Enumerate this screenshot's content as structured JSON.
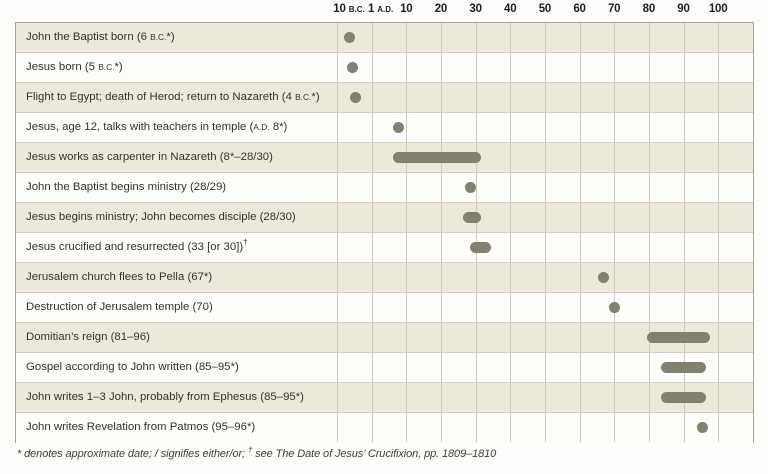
{
  "footnote": "* denotes approximate date; / signifies either/or; † see The Date of Jesus’ Crucifixion, pp. 1809–1810",
  "chart_data": {
    "type": "timeline-gantt",
    "title": "",
    "axis": {
      "unit": "years",
      "range_label": "10 B.C. to A.D. 100",
      "ticks": [
        {
          "label": "10",
          "suffix": "B.C.",
          "year": -10
        },
        {
          "label": "1",
          "suffix": "A.D.",
          "year": 1
        },
        {
          "label": "10",
          "suffix": "",
          "year": 10
        },
        {
          "label": "20",
          "suffix": "",
          "year": 20
        },
        {
          "label": "30",
          "suffix": "",
          "year": 30
        },
        {
          "label": "40",
          "suffix": "",
          "year": 40
        },
        {
          "label": "50",
          "suffix": "",
          "year": 50
        },
        {
          "label": "60",
          "suffix": "",
          "year": 60
        },
        {
          "label": "70",
          "suffix": "",
          "year": 70
        },
        {
          "label": "80",
          "suffix": "",
          "year": 80
        },
        {
          "label": "90",
          "suffix": "",
          "year": 90
        },
        {
          "label": "100",
          "suffix": "",
          "year": 100
        }
      ]
    },
    "rows": [
      {
        "label": "John the Baptist born (6 B.C.*)",
        "marker": "dot",
        "start": -6,
        "end": -6
      },
      {
        "label": "Jesus born (5 B.C.*)",
        "marker": "dot",
        "start": -5,
        "end": -5
      },
      {
        "label": "Flight to Egypt; death of Herod; return to Nazareth (4 B.C.*)",
        "marker": "dot",
        "start": -4,
        "end": -4
      },
      {
        "label": "Jesus, age 12, talks with teachers in temple (A.D. 8*)",
        "marker": "dot",
        "start": 8,
        "end": 8
      },
      {
        "label": "Jesus works as carpenter in Nazareth (8*–28/30)",
        "marker": "bar",
        "start": 8,
        "end": 30
      },
      {
        "label": "John the Baptist begins ministry (28/29)",
        "marker": "dot",
        "start": 28.5,
        "end": 28.5
      },
      {
        "label": "Jesus begins ministry; John becomes disciple (28/30)",
        "marker": "bar",
        "start": 28,
        "end": 30
      },
      {
        "label": "Jesus crucified and resurrected (33 [or 30])†",
        "marker": "bar",
        "start": 30,
        "end": 33
      },
      {
        "label": "Jerusalem church flees to Pella (67*)",
        "marker": "dot",
        "start": 67,
        "end": 67
      },
      {
        "label": "Destruction of Jerusalem temple (70)",
        "marker": "dot",
        "start": 70,
        "end": 70
      },
      {
        "label": "Domitian’s reign (81–96)",
        "marker": "bar",
        "start": 81,
        "end": 96
      },
      {
        "label": "Gospel according to John written (85–95*)",
        "marker": "bar",
        "start": 85,
        "end": 95
      },
      {
        "label": "John writes 1–3 John, probably from Ephesus (85–95*)",
        "marker": "bar",
        "start": 85,
        "end": 95
      },
      {
        "label": "John writes Revelation from Patmos (95–96*)",
        "marker": "dot",
        "start": 95.5,
        "end": 95.5
      }
    ],
    "colors": {
      "marker": "#82806f",
      "row_band": "#ece9db",
      "row_plain": "#fdfdfa",
      "grid_line": "#c9cbc3",
      "border": "#a2a49c",
      "axis_text": "#1e1e1c",
      "label_text": "#33322e",
      "footnote_text": "#41403b",
      "page_bg": "#fdfdfc"
    },
    "legend": "none",
    "gridlines": true
  }
}
